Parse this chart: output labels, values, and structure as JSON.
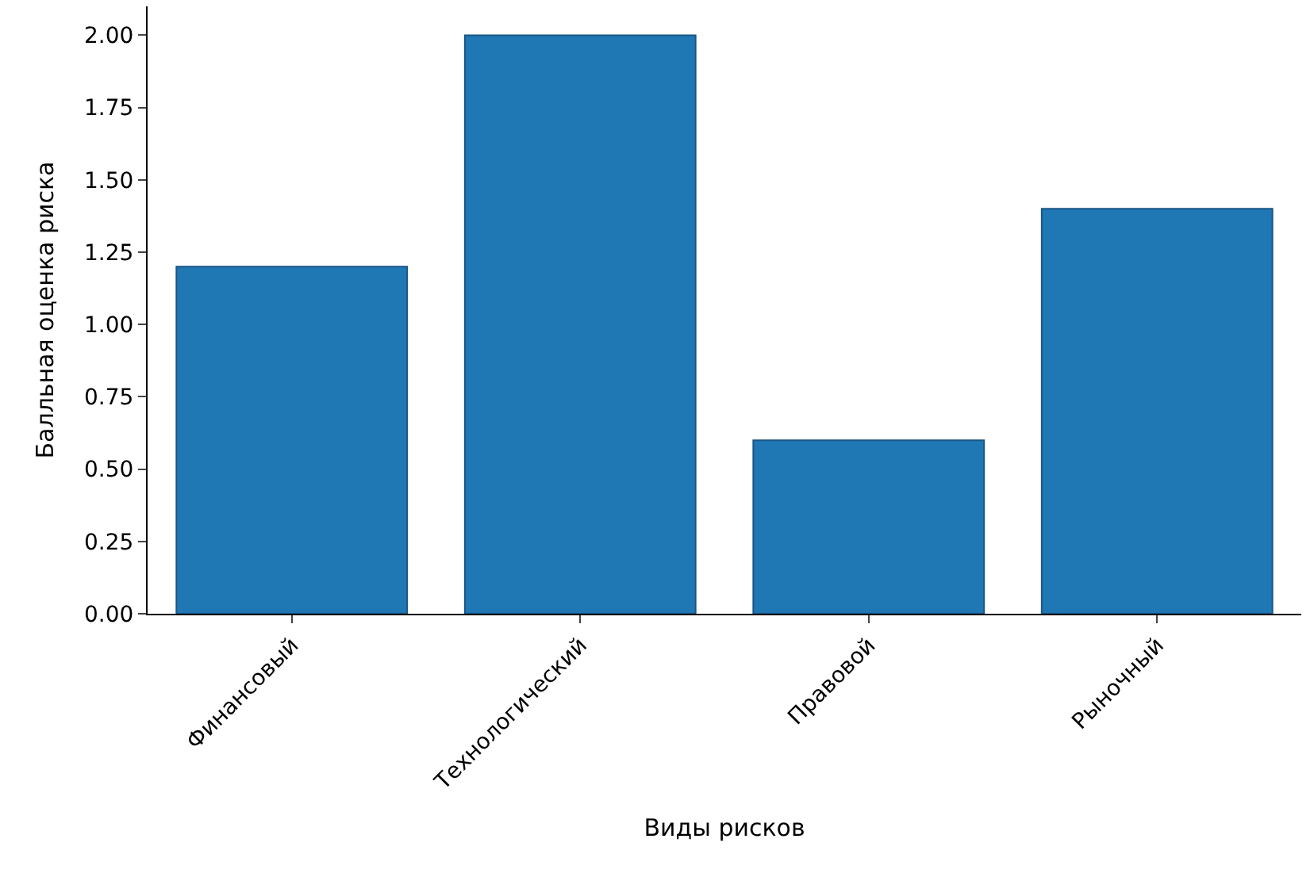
{
  "chart_data": {
    "type": "bar",
    "xlabel": "Виды рисков",
    "ylabel": "Балльная оценка риска",
    "categories": [
      "Финансовый",
      "Технологический",
      "Правовой",
      "Рыночный"
    ],
    "values": [
      1.2,
      2.0,
      0.6,
      1.4
    ],
    "color": "#1f77b4",
    "ylim": [
      0,
      2.1
    ],
    "yticks": [
      {
        "value": 0,
        "label": "0.00"
      },
      {
        "value": 0.25,
        "label": "0.25"
      },
      {
        "value": 0.5,
        "label": "0.50"
      },
      {
        "value": 0.75,
        "label": "0.75"
      },
      {
        "value": 1.0,
        "label": "1.00"
      },
      {
        "value": 1.25,
        "label": "1.25"
      },
      {
        "value": 1.5,
        "label": "1.50"
      },
      {
        "value": 1.75,
        "label": "1.75"
      },
      {
        "value": 2.0,
        "label": "2.00"
      }
    ]
  }
}
